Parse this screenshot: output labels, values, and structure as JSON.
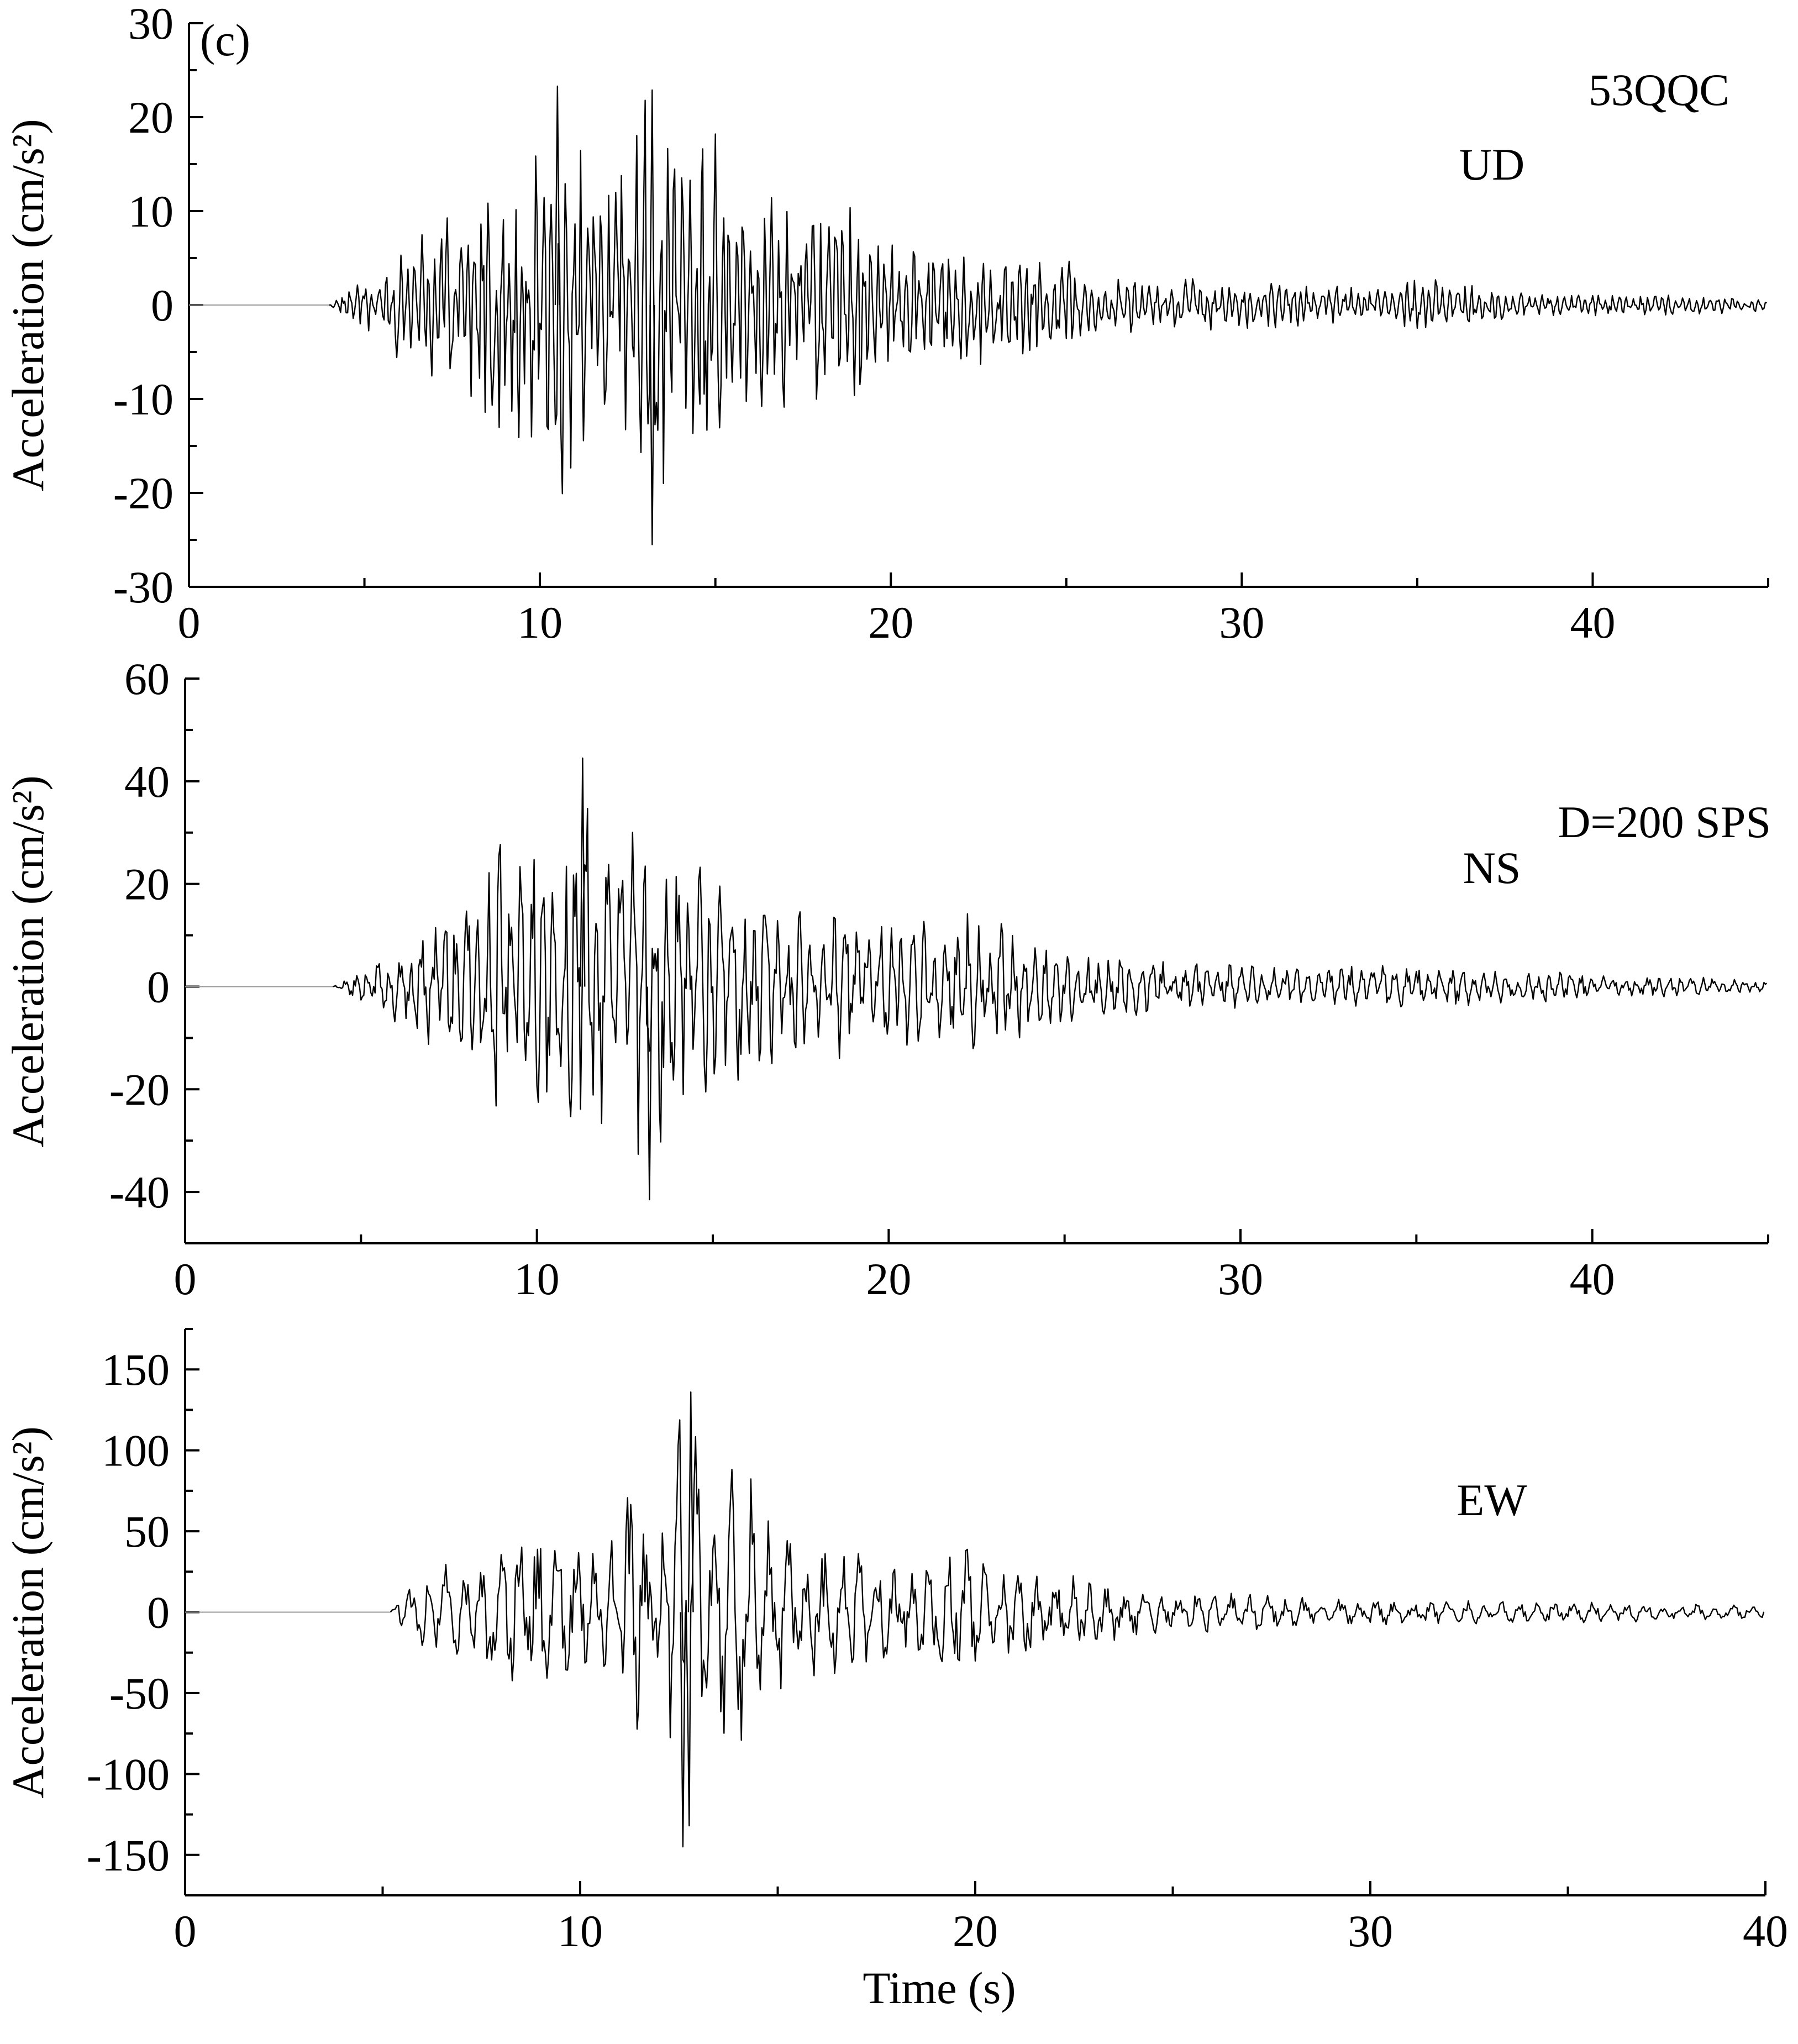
{
  "figure_label": "(c)",
  "station": "53QQC",
  "sampling_note": "D=200 SPS",
  "colors": {
    "trace": "#000000",
    "pre_event": "#9a9a9a",
    "background": "#ffffff"
  },
  "chart_data": [
    {
      "type": "line",
      "component": "UD",
      "ylabel": "Acceleration  (cm/s²)",
      "xlabel": "",
      "xlim": [
        0,
        45
      ],
      "ylim": [
        -30,
        30
      ],
      "xticks": [
        0,
        10,
        20,
        30,
        40
      ],
      "yticks": [
        -30,
        -20,
        -10,
        0,
        10,
        20,
        30
      ],
      "peaks": {
        "max": 23.3,
        "max_time": 10.5,
        "min": -25.5,
        "min_time": 13.2
      },
      "series": [
        {
          "x": [
            0,
            4.0,
            5,
            6,
            7,
            8,
            9,
            9.6,
            10.0,
            10.5,
            11,
            12,
            13.2,
            14.0,
            14.6,
            14.9,
            16,
            17,
            18,
            18.5,
            19.0,
            19.5,
            20,
            21,
            22,
            23,
            24,
            25,
            26,
            27,
            28,
            29,
            30,
            31,
            32,
            33,
            34,
            35,
            36,
            37,
            38,
            39,
            40,
            41,
            42,
            43,
            44,
            45
          ],
          "env": [
            0,
            0,
            3,
            6,
            9,
            12,
            15,
            15,
            18,
            23.3,
            17,
            16,
            25.5,
            16,
            18.5,
            21,
            12,
            13,
            12,
            14,
            12,
            10,
            7,
            7,
            7,
            6,
            5.5,
            5,
            3.5,
            3,
            3,
            3,
            2.5,
            3,
            2.5,
            2,
            2,
            3,
            2.5,
            2,
            1.5,
            1.3,
            1.2,
            1.2,
            1.2,
            1,
            1,
            0.6
          ]
        }
      ]
    },
    {
      "type": "line",
      "component": "NS",
      "ylabel": "Acceleration  (cm/s²)",
      "xlabel": "",
      "xlim": [
        0,
        45
      ],
      "ylim": [
        -50,
        60
      ],
      "xticks": [
        0,
        10,
        20,
        30,
        40
      ],
      "yticks": [
        -40,
        -20,
        0,
        20,
        40,
        60
      ],
      "peaks": {
        "max": 44.5,
        "max_time": 11.3,
        "min": -41.5,
        "min_time": 13.2
      },
      "series": [
        {
          "x": [
            0,
            4.2,
            5,
            6,
            7,
            8,
            8.8,
            9.3,
            10,
            10.5,
            11.3,
            12,
            13.2,
            14,
            14.5,
            15,
            16,
            17,
            18,
            19,
            20,
            21,
            22,
            22.6,
            23,
            24,
            24.4,
            25,
            26,
            27,
            28,
            29,
            30,
            31,
            32,
            33,
            34,
            35,
            36,
            37,
            38,
            39,
            40,
            41,
            42,
            43,
            44,
            45
          ],
          "env": [
            0,
            0,
            3,
            8,
            12,
            18,
            32,
            33,
            30,
            26,
            44.5,
            26,
            41.5,
            26,
            27,
            24,
            20,
            18,
            15,
            15,
            14,
            14,
            14,
            18,
            14,
            11,
            11,
            8,
            6,
            6,
            5,
            5,
            4.5,
            4,
            4,
            4,
            4.5,
            4,
            4,
            3.5,
            3,
            3.5,
            2.5,
            2,
            2,
            2,
            1.5,
            1
          ]
        }
      ]
    },
    {
      "type": "line",
      "component": "EW",
      "ylabel": "Acceleration  (cm/s²)",
      "xlabel": "Time (s)",
      "xlim": [
        0,
        40
      ],
      "ylim": [
        -175,
        175
      ],
      "xticks": [
        0,
        10,
        20,
        30,
        40
      ],
      "yticks": [
        -150,
        -100,
        -50,
        0,
        50,
        100,
        150
      ],
      "peaks": {
        "max": 136,
        "max_time": 12.8,
        "min": -145,
        "min_time": 12.6
      },
      "series": [
        {
          "x": [
            0,
            5.2,
            5.6,
            6,
            7,
            8,
            9,
            10,
            11,
            11.1,
            12,
            12.5,
            12.8,
            13,
            13.5,
            14,
            14.3,
            15,
            16,
            17,
            18,
            19,
            19.2,
            20,
            21,
            22,
            23,
            24,
            25,
            26,
            27,
            28,
            29,
            30,
            31,
            32,
            33,
            34,
            35,
            36,
            37,
            38,
            39,
            40
          ],
          "env": [
            0,
            0,
            20,
            28,
            35,
            48,
            55,
            50,
            45,
            85,
            60,
            118,
            145,
            110,
            90,
            98,
            95,
            60,
            40,
            38,
            35,
            40,
            62,
            35,
            28,
            25,
            22,
            18,
            15,
            13,
            12,
            10,
            9,
            9,
            8,
            8,
            7,
            7,
            7,
            6,
            6,
            5,
            5,
            4
          ]
        }
      ]
    }
  ]
}
